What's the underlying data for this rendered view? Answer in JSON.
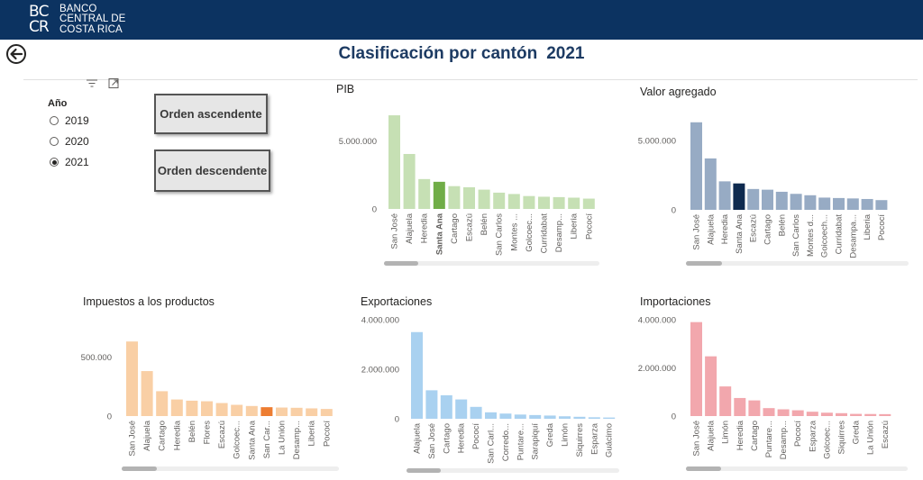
{
  "header": {
    "logo_mark": "BCCR",
    "logo_lines": [
      "BANCO",
      "CENTRAL DE",
      "COSTA RICA"
    ],
    "background": "#0c3361"
  },
  "title": {
    "text": "Clasificación por cantón",
    "year": "2021"
  },
  "slicer": {
    "title": "Año",
    "options": [
      {
        "label": "2019",
        "checked": false
      },
      {
        "label": "2020",
        "checked": false
      },
      {
        "label": "2021",
        "checked": true
      }
    ]
  },
  "buttons": {
    "asc": "Orden ascendente",
    "desc": "Orden descendente"
  },
  "icons": {
    "back": "back-arrow-icon",
    "filter": "filter-icon",
    "focus": "focus-mode-icon"
  },
  "chart_data": [
    {
      "type": "bar",
      "title": "PIB",
      "color": "#c6e0b4",
      "highlight_color": "#70ad47",
      "highlight_index": 3,
      "highlight_bold": true,
      "categories": [
        "San José",
        "Alajuela",
        "Heredia",
        "Santa Ana",
        "Cartago",
        "Escazú",
        "Belén",
        "San Carlos",
        "Montes ...",
        "Golcoec...",
        "Curridabat",
        "Desamp...",
        "Liberia",
        "Pococí"
      ],
      "values": [
        6900000,
        4050000,
        2200000,
        2000000,
        1680000,
        1600000,
        1420000,
        1200000,
        1100000,
        950000,
        900000,
        870000,
        830000,
        760000
      ],
      "ylim": [
        0,
        7500000
      ],
      "yticks": [
        0,
        5000000
      ],
      "ytick_labels": [
        "0",
        "5.000.000"
      ],
      "scroll_fraction": 0.16
    },
    {
      "type": "bar",
      "title": "Valor agregado",
      "color": "#97abc4",
      "highlight_color": "#0e2a4f",
      "highlight_index": 3,
      "highlight_bold": false,
      "categories": [
        "San José",
        "Alajuela",
        "Heredia",
        "Santa Ana",
        "Escazú",
        "Cartago",
        "Belén",
        "San Carlos",
        "Montes d...",
        "Goicoech...",
        "Curridabat",
        "Desampa...",
        "Liberia",
        "Pococí"
      ],
      "values": [
        6300000,
        3700000,
        2050000,
        1900000,
        1500000,
        1450000,
        1300000,
        1150000,
        1050000,
        880000,
        850000,
        820000,
        780000,
        700000
      ],
      "ylim": [
        0,
        7000000
      ],
      "yticks": [
        0,
        5000000
      ],
      "ytick_labels": [
        "0",
        "5.000.000"
      ],
      "scroll_fraction": 0.16
    },
    {
      "type": "bar",
      "title": "Impuestos a los productos",
      "color": "#f9cfa5",
      "highlight_color": "#ed7d31",
      "highlight_index": 9,
      "highlight_bold": false,
      "categories": [
        "San José",
        "Alajuela",
        "Cartago",
        "Heredia",
        "Belén",
        "Flores",
        "Escazú",
        "Golcoec...",
        "Santa Ana",
        "San Car...",
        "La Unión",
        "Desamp...",
        "Liberia",
        "Pococí"
      ],
      "values": [
        630000,
        380000,
        210000,
        140000,
        130000,
        125000,
        110000,
        95000,
        85000,
        75000,
        72000,
        70000,
        65000,
        60000
      ],
      "ylim": [
        0,
        700000
      ],
      "yticks": [
        0,
        500000
      ],
      "ytick_labels": [
        "0",
        "500.000"
      ],
      "scroll_fraction": 0.16
    },
    {
      "type": "bar",
      "title": "Exportaciones",
      "color": "#a9d1f0",
      "highlight_color": "#a9d1f0",
      "highlight_index": -1,
      "highlight_bold": false,
      "categories": [
        "Alajuela",
        "San José",
        "Cartago",
        "Heredia",
        "Pococí",
        "San Carl...",
        "Corredo...",
        "Puntare...",
        "Sarapiquí",
        "Greda",
        "Limón",
        "Siquirres",
        "Esparza",
        "Guácimo"
      ],
      "values": [
        3500000,
        1150000,
        950000,
        780000,
        480000,
        260000,
        210000,
        170000,
        150000,
        130000,
        100000,
        80000,
        60000,
        50000
      ],
      "ylim": [
        0,
        4000000
      ],
      "yticks": [
        0,
        2000000,
        4000000
      ],
      "ytick_labels": [
        "0",
        "2.000.000",
        "4.000.000"
      ],
      "scroll_fraction": 0.16
    },
    {
      "type": "bar",
      "title": "Importaciones",
      "color": "#f2a7ad",
      "highlight_color": "#f2a7ad",
      "highlight_index": -1,
      "highlight_bold": false,
      "categories": [
        "San José",
        "Alajuela",
        "Limón",
        "Heredia",
        "Cartago",
        "Puntare...",
        "Desamp...",
        "Pococí",
        "Esparza",
        "Golcoec...",
        "Siquirres",
        "Greda",
        "La Unión",
        "Escazú"
      ],
      "values": [
        3900000,
        2480000,
        1230000,
        750000,
        650000,
        330000,
        280000,
        240000,
        180000,
        140000,
        120000,
        90000,
        85000,
        80000
      ],
      "ylim": [
        0,
        4000000
      ],
      "yticks": [
        0,
        2000000,
        4000000
      ],
      "ytick_labels": [
        "0",
        "2.000.000",
        "4.000.000"
      ],
      "scroll_fraction": 0.16
    }
  ]
}
